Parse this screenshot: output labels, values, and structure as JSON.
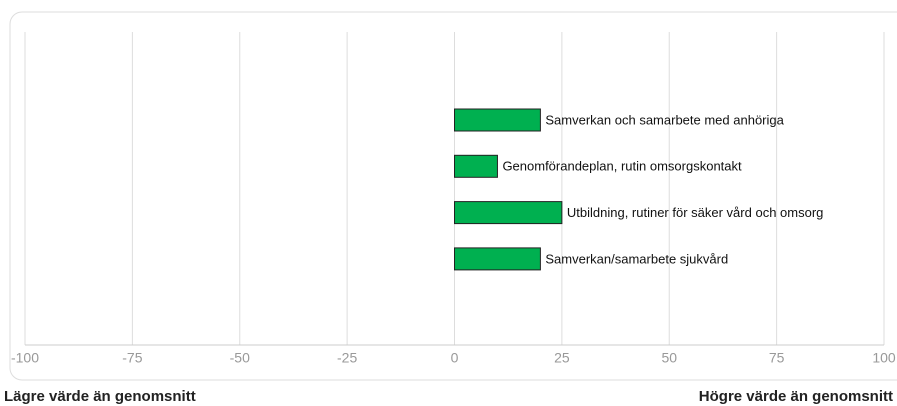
{
  "chart_data": {
    "type": "barh",
    "categories": [
      "Samverkan och samarbete med anhöriga",
      "Genomförandeplan, rutin omsorgskontakt",
      "Utbildning, rutiner för säker vård och omsorg",
      "Samverkan/samarbete sjukvård"
    ],
    "values": [
      20,
      10,
      25,
      20
    ],
    "color": "#00b050",
    "xlim": [
      -100,
      100
    ],
    "xticks": [
      -100,
      -75,
      -50,
      -25,
      0,
      25,
      50,
      75,
      100
    ],
    "grid": true,
    "annotations": [
      "Lägre värde än genomsnitt",
      "Högre värde än genomsnitt"
    ]
  }
}
